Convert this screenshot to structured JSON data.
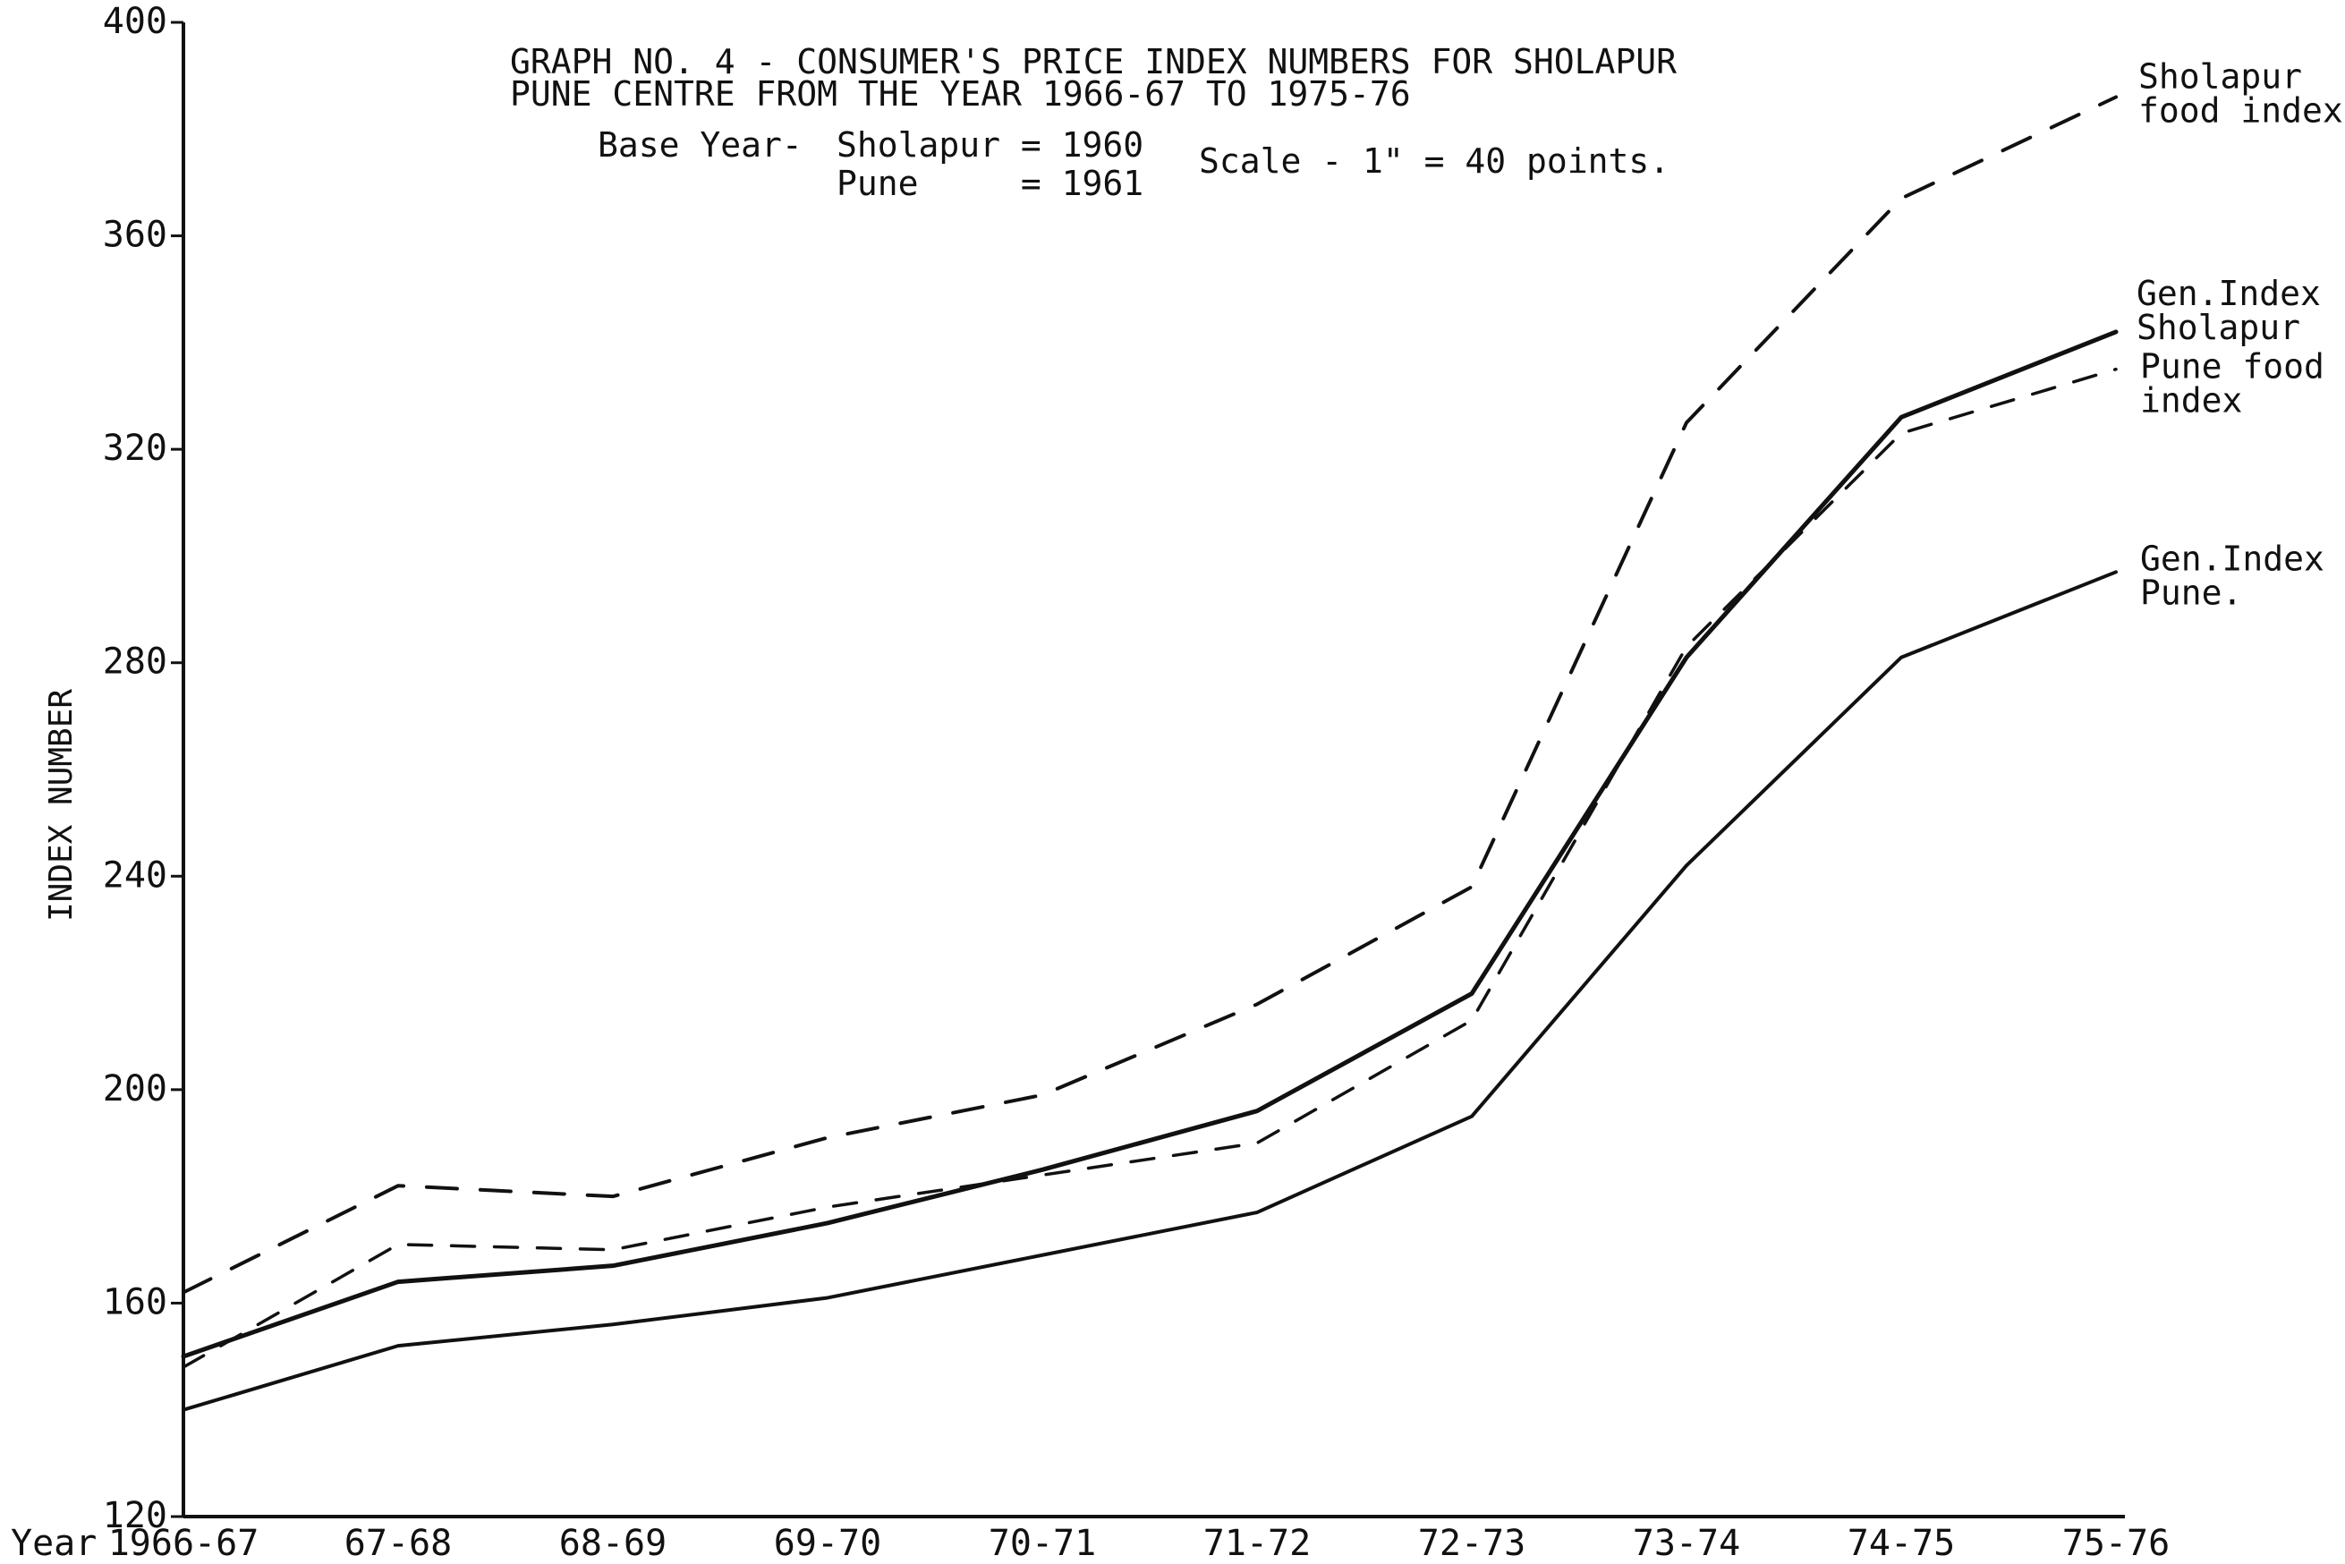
{
  "chart_data": {
    "type": "line",
    "title_line1": "GRAPH NO. 4 - CONSUMER'S PRICE INDEX NUMBERS FOR SHOLAPUR",
    "title_line2": "PUNE CENTRE FROM THE YEAR 1966-67 TO 1975-76",
    "base_year": {
      "label": "Base Year-",
      "row1": "Sholapur = 1960",
      "row2": "Pune     = 1961"
    },
    "scale_note": "Scale - 1\" = 40 points.",
    "xlabel": "Year",
    "ylabel": "INDEX NUMBER",
    "categories": [
      "1966-67",
      "67-68",
      "68-69",
      "69-70",
      "70-71",
      "71-72",
      "72-73",
      "73-74",
      "74-75",
      "75-76"
    ],
    "yticks": [
      "120",
      "160",
      "200",
      "240",
      "280",
      "320",
      "360",
      "400"
    ],
    "ylim": [
      120,
      400
    ],
    "grid": false,
    "series": [
      {
        "name": "Sholapur food index",
        "label_lines": [
          "Sholapur",
          "food index"
        ],
        "style": "dashed-long",
        "values": [
          162,
          182,
          180,
          191,
          199,
          216,
          238,
          325,
          367,
          386
        ]
      },
      {
        "name": "Gen.Index Sholapur",
        "label_lines": [
          "Gen.Index",
          "Sholapur"
        ],
        "style": "solid-thick",
        "values": [
          150,
          164,
          167,
          175,
          185,
          196,
          218,
          281,
          326,
          342
        ]
      },
      {
        "name": "Pune food index",
        "label_lines": [
          "Pune food",
          "index"
        ],
        "style": "dashed",
        "values": [
          148,
          171,
          170,
          178,
          184,
          190,
          213,
          283,
          323,
          335
        ]
      },
      {
        "name": "Gen.Index Pune.",
        "label_lines": [
          "Gen.Index",
          "Pune."
        ],
        "style": "solid",
        "values": [
          140,
          152,
          156,
          161,
          169,
          177,
          195,
          242,
          281,
          297
        ]
      }
    ]
  }
}
